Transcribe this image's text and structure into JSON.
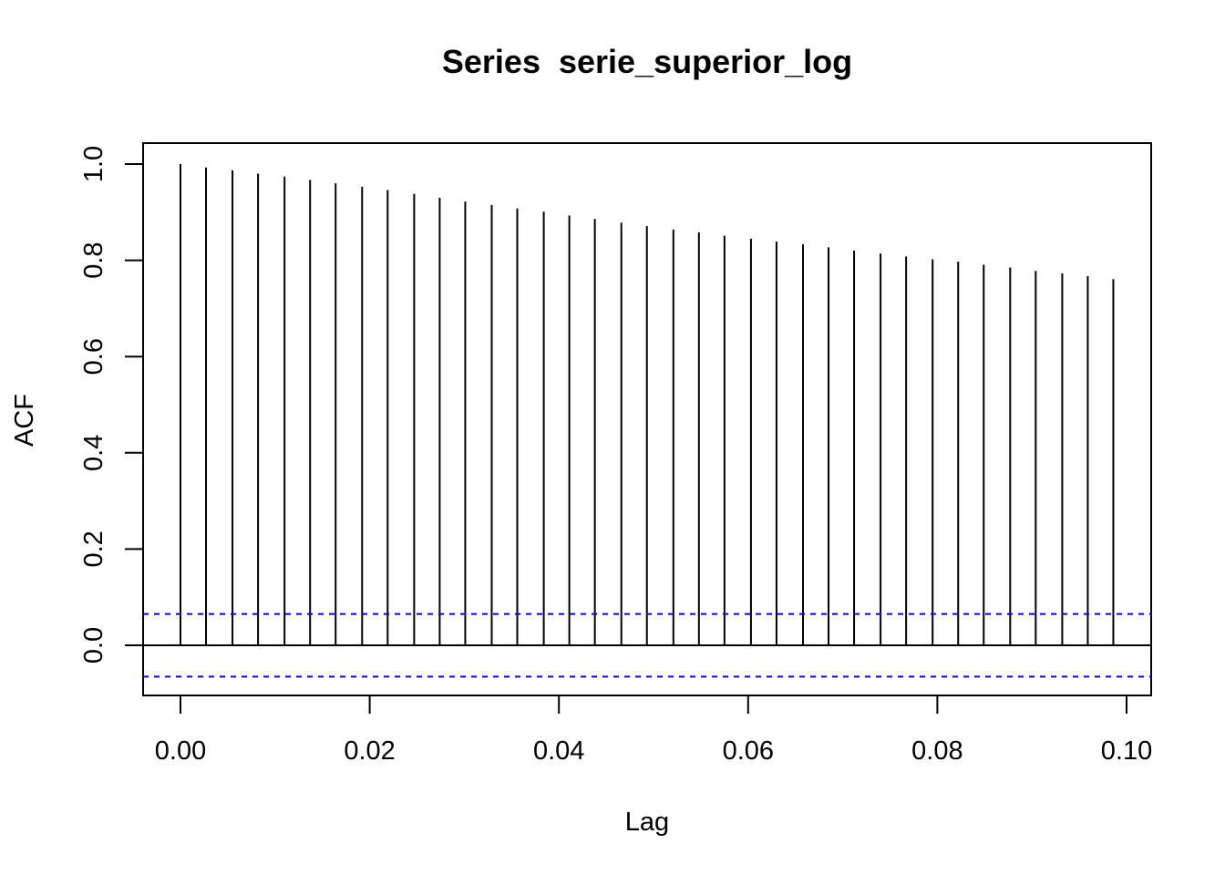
{
  "chart_data": {
    "type": "bar",
    "subtype": "acf",
    "title": "Series  serie_superior_log",
    "xlabel": "Lag",
    "ylabel": "ACF",
    "xlim": [
      0,
      0.1
    ],
    "ylim": [
      -0.1,
      1.0
    ],
    "x_ticks": [
      "0.00",
      "0.02",
      "0.04",
      "0.06",
      "0.08",
      "0.10"
    ],
    "x_tick_values": [
      0,
      0.02,
      0.04,
      0.06,
      0.08,
      0.1
    ],
    "y_ticks": [
      "0.0",
      "0.2",
      "0.4",
      "0.6",
      "0.8",
      "1.0"
    ],
    "y_tick_values": [
      0,
      0.2,
      0.4,
      0.6,
      0.8,
      1.0
    ],
    "lags": [
      0.0,
      0.0027,
      0.0055,
      0.0082,
      0.011,
      0.0137,
      0.0164,
      0.0192,
      0.0219,
      0.0247,
      0.0274,
      0.0301,
      0.0329,
      0.0356,
      0.0384,
      0.0411,
      0.0438,
      0.0466,
      0.0493,
      0.0521,
      0.0548,
      0.0575,
      0.0603,
      0.063,
      0.0658,
      0.0685,
      0.0712,
      0.074,
      0.0767,
      0.0795,
      0.0822,
      0.0849,
      0.0877,
      0.0904,
      0.0932,
      0.0959,
      0.0986
    ],
    "values": [
      1.0,
      0.993,
      0.987,
      0.98,
      0.974,
      0.967,
      0.96,
      0.953,
      0.946,
      0.938,
      0.93,
      0.922,
      0.915,
      0.908,
      0.901,
      0.893,
      0.886,
      0.878,
      0.871,
      0.864,
      0.858,
      0.851,
      0.845,
      0.839,
      0.833,
      0.827,
      0.82,
      0.814,
      0.808,
      0.802,
      0.797,
      0.791,
      0.785,
      0.778,
      0.773,
      0.767,
      0.761
    ],
    "confidence_bound": 0.065,
    "confidence_color": "#0000ff",
    "bar_color": "#000000",
    "grid": false
  }
}
